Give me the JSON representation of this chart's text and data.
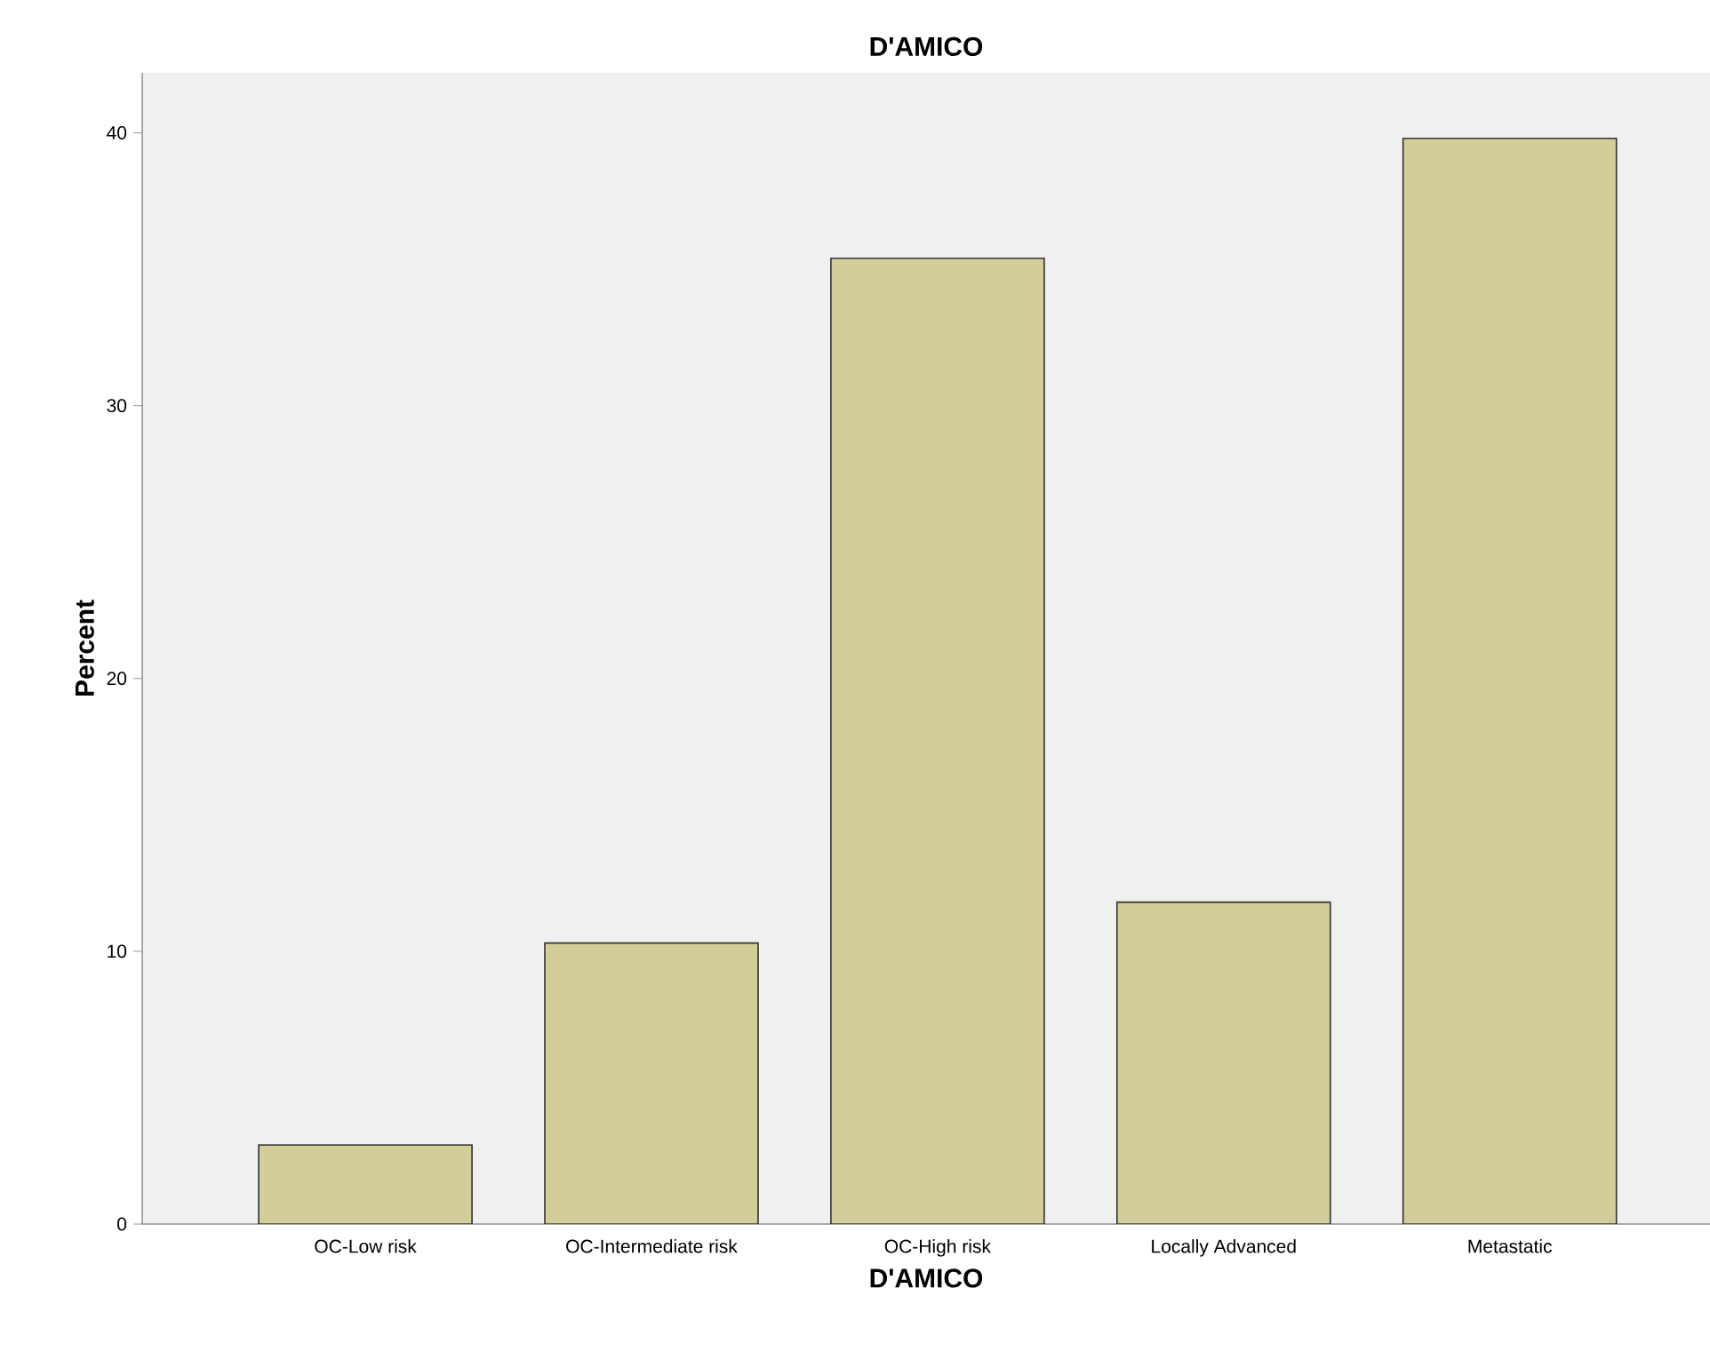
{
  "chart_data": {
    "type": "bar",
    "title": "D'AMICO",
    "xlabel": "D'AMICO",
    "ylabel": "Percent",
    "categories": [
      "OC-Low risk",
      "OC-Intermediate risk",
      "OC-High risk",
      "Locally Advanced",
      "Metastatic"
    ],
    "values": [
      2.9,
      10.3,
      35.4,
      11.8,
      39.8
    ],
    "color": "#d3ce97",
    "ylim": [
      0,
      42.2
    ],
    "yticks": [
      0,
      10,
      20,
      30,
      40
    ],
    "grid": false
  }
}
